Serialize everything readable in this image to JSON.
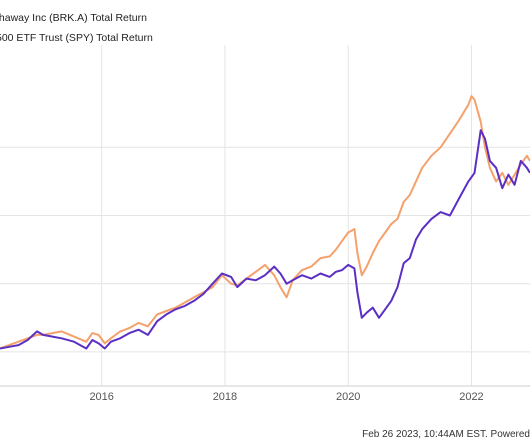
{
  "legend": [
    {
      "label": "thaway Inc (BRK.A) Total Return",
      "color": "#5b2fc4"
    },
    {
      "label": " 500 ETF Trust (SPY) Total Return",
      "color": "#f5a16b"
    }
  ],
  "footer": {
    "text": "Feb 26 2023, 10:44AM EST. Powered"
  },
  "chart_data": {
    "type": "line",
    "title": "",
    "xlabel": "",
    "ylabel": "",
    "x_ticks": [
      2016,
      2018,
      2020,
      2022
    ],
    "xlim": [
      2014.35,
      2022.95
    ],
    "ylim": [
      -20,
      180
    ],
    "y_gridlines": [
      0,
      40,
      80,
      120
    ],
    "grid": true,
    "legend_position": "top-left",
    "series": [
      {
        "name": "thaway Inc (BRK.A) Total Return",
        "color": "#5b2fc4",
        "points": [
          [
            2014.35,
            2
          ],
          [
            2014.5,
            3
          ],
          [
            2014.65,
            4
          ],
          [
            2014.8,
            7
          ],
          [
            2014.95,
            12
          ],
          [
            2015.05,
            10
          ],
          [
            2015.2,
            9
          ],
          [
            2015.35,
            8
          ],
          [
            2015.55,
            6
          ],
          [
            2015.75,
            2
          ],
          [
            2015.85,
            7
          ],
          [
            2015.95,
            5
          ],
          [
            2016.05,
            2
          ],
          [
            2016.15,
            6
          ],
          [
            2016.3,
            8
          ],
          [
            2016.45,
            11
          ],
          [
            2016.6,
            13
          ],
          [
            2016.75,
            10
          ],
          [
            2016.9,
            18
          ],
          [
            2017.05,
            22
          ],
          [
            2017.2,
            25
          ],
          [
            2017.35,
            27
          ],
          [
            2017.5,
            30
          ],
          [
            2017.65,
            34
          ],
          [
            2017.8,
            40
          ],
          [
            2017.95,
            46
          ],
          [
            2018.1,
            44
          ],
          [
            2018.2,
            38
          ],
          [
            2018.35,
            43
          ],
          [
            2018.5,
            42
          ],
          [
            2018.65,
            45
          ],
          [
            2018.8,
            50
          ],
          [
            2018.9,
            46
          ],
          [
            2019.0,
            40
          ],
          [
            2019.1,
            42
          ],
          [
            2019.25,
            45
          ],
          [
            2019.4,
            43
          ],
          [
            2019.55,
            46
          ],
          [
            2019.7,
            44
          ],
          [
            2019.8,
            47
          ],
          [
            2019.9,
            48
          ],
          [
            2020.0,
            51
          ],
          [
            2020.1,
            49
          ],
          [
            2020.15,
            35
          ],
          [
            2020.22,
            20
          ],
          [
            2020.3,
            23
          ],
          [
            2020.4,
            26
          ],
          [
            2020.5,
            20
          ],
          [
            2020.6,
            25
          ],
          [
            2020.7,
            30
          ],
          [
            2020.8,
            38
          ],
          [
            2020.9,
            52
          ],
          [
            2021.0,
            55
          ],
          [
            2021.1,
            66
          ],
          [
            2021.2,
            72
          ],
          [
            2021.35,
            78
          ],
          [
            2021.5,
            82
          ],
          [
            2021.65,
            80
          ],
          [
            2021.8,
            90
          ],
          [
            2021.95,
            100
          ],
          [
            2022.05,
            105
          ],
          [
            2022.15,
            130
          ],
          [
            2022.22,
            125
          ],
          [
            2022.3,
            112
          ],
          [
            2022.4,
            108
          ],
          [
            2022.5,
            96
          ],
          [
            2022.6,
            104
          ],
          [
            2022.7,
            98
          ],
          [
            2022.8,
            112
          ],
          [
            2022.9,
            108
          ],
          [
            2022.95,
            105
          ]
        ]
      },
      {
        "name": " 500 ETF Trust (SPY) Total Return",
        "color": "#f5a16b",
        "points": [
          [
            2014.35,
            2
          ],
          [
            2014.5,
            4
          ],
          [
            2014.65,
            6
          ],
          [
            2014.8,
            8
          ],
          [
            2014.95,
            10
          ],
          [
            2015.05,
            10
          ],
          [
            2015.2,
            11
          ],
          [
            2015.35,
            12
          ],
          [
            2015.55,
            9
          ],
          [
            2015.75,
            6
          ],
          [
            2015.85,
            11
          ],
          [
            2015.95,
            10
          ],
          [
            2016.05,
            5
          ],
          [
            2016.15,
            8
          ],
          [
            2016.3,
            12
          ],
          [
            2016.45,
            14
          ],
          [
            2016.6,
            17
          ],
          [
            2016.75,
            15
          ],
          [
            2016.9,
            22
          ],
          [
            2017.05,
            24
          ],
          [
            2017.2,
            26
          ],
          [
            2017.35,
            29
          ],
          [
            2017.5,
            32
          ],
          [
            2017.65,
            35
          ],
          [
            2017.8,
            38
          ],
          [
            2017.95,
            45
          ],
          [
            2018.1,
            40
          ],
          [
            2018.2,
            39
          ],
          [
            2018.35,
            43
          ],
          [
            2018.5,
            47
          ],
          [
            2018.65,
            51
          ],
          [
            2018.8,
            45
          ],
          [
            2018.9,
            38
          ],
          [
            2019.0,
            32
          ],
          [
            2019.1,
            42
          ],
          [
            2019.25,
            48
          ],
          [
            2019.4,
            50
          ],
          [
            2019.55,
            55
          ],
          [
            2019.7,
            56
          ],
          [
            2019.8,
            60
          ],
          [
            2019.9,
            65
          ],
          [
            2020.0,
            70
          ],
          [
            2020.1,
            72
          ],
          [
            2020.15,
            58
          ],
          [
            2020.22,
            45
          ],
          [
            2020.3,
            50
          ],
          [
            2020.4,
            58
          ],
          [
            2020.5,
            65
          ],
          [
            2020.6,
            70
          ],
          [
            2020.7,
            75
          ],
          [
            2020.8,
            78
          ],
          [
            2020.9,
            88
          ],
          [
            2021.0,
            92
          ],
          [
            2021.1,
            100
          ],
          [
            2021.2,
            108
          ],
          [
            2021.35,
            115
          ],
          [
            2021.5,
            120
          ],
          [
            2021.65,
            128
          ],
          [
            2021.8,
            136
          ],
          [
            2021.95,
            145
          ],
          [
            2022.0,
            150
          ],
          [
            2022.05,
            148
          ],
          [
            2022.15,
            135
          ],
          [
            2022.22,
            120
          ],
          [
            2022.3,
            108
          ],
          [
            2022.4,
            100
          ],
          [
            2022.5,
            105
          ],
          [
            2022.6,
            98
          ],
          [
            2022.7,
            104
          ],
          [
            2022.8,
            110
          ],
          [
            2022.9,
            115
          ],
          [
            2022.95,
            112
          ]
        ]
      }
    ]
  }
}
